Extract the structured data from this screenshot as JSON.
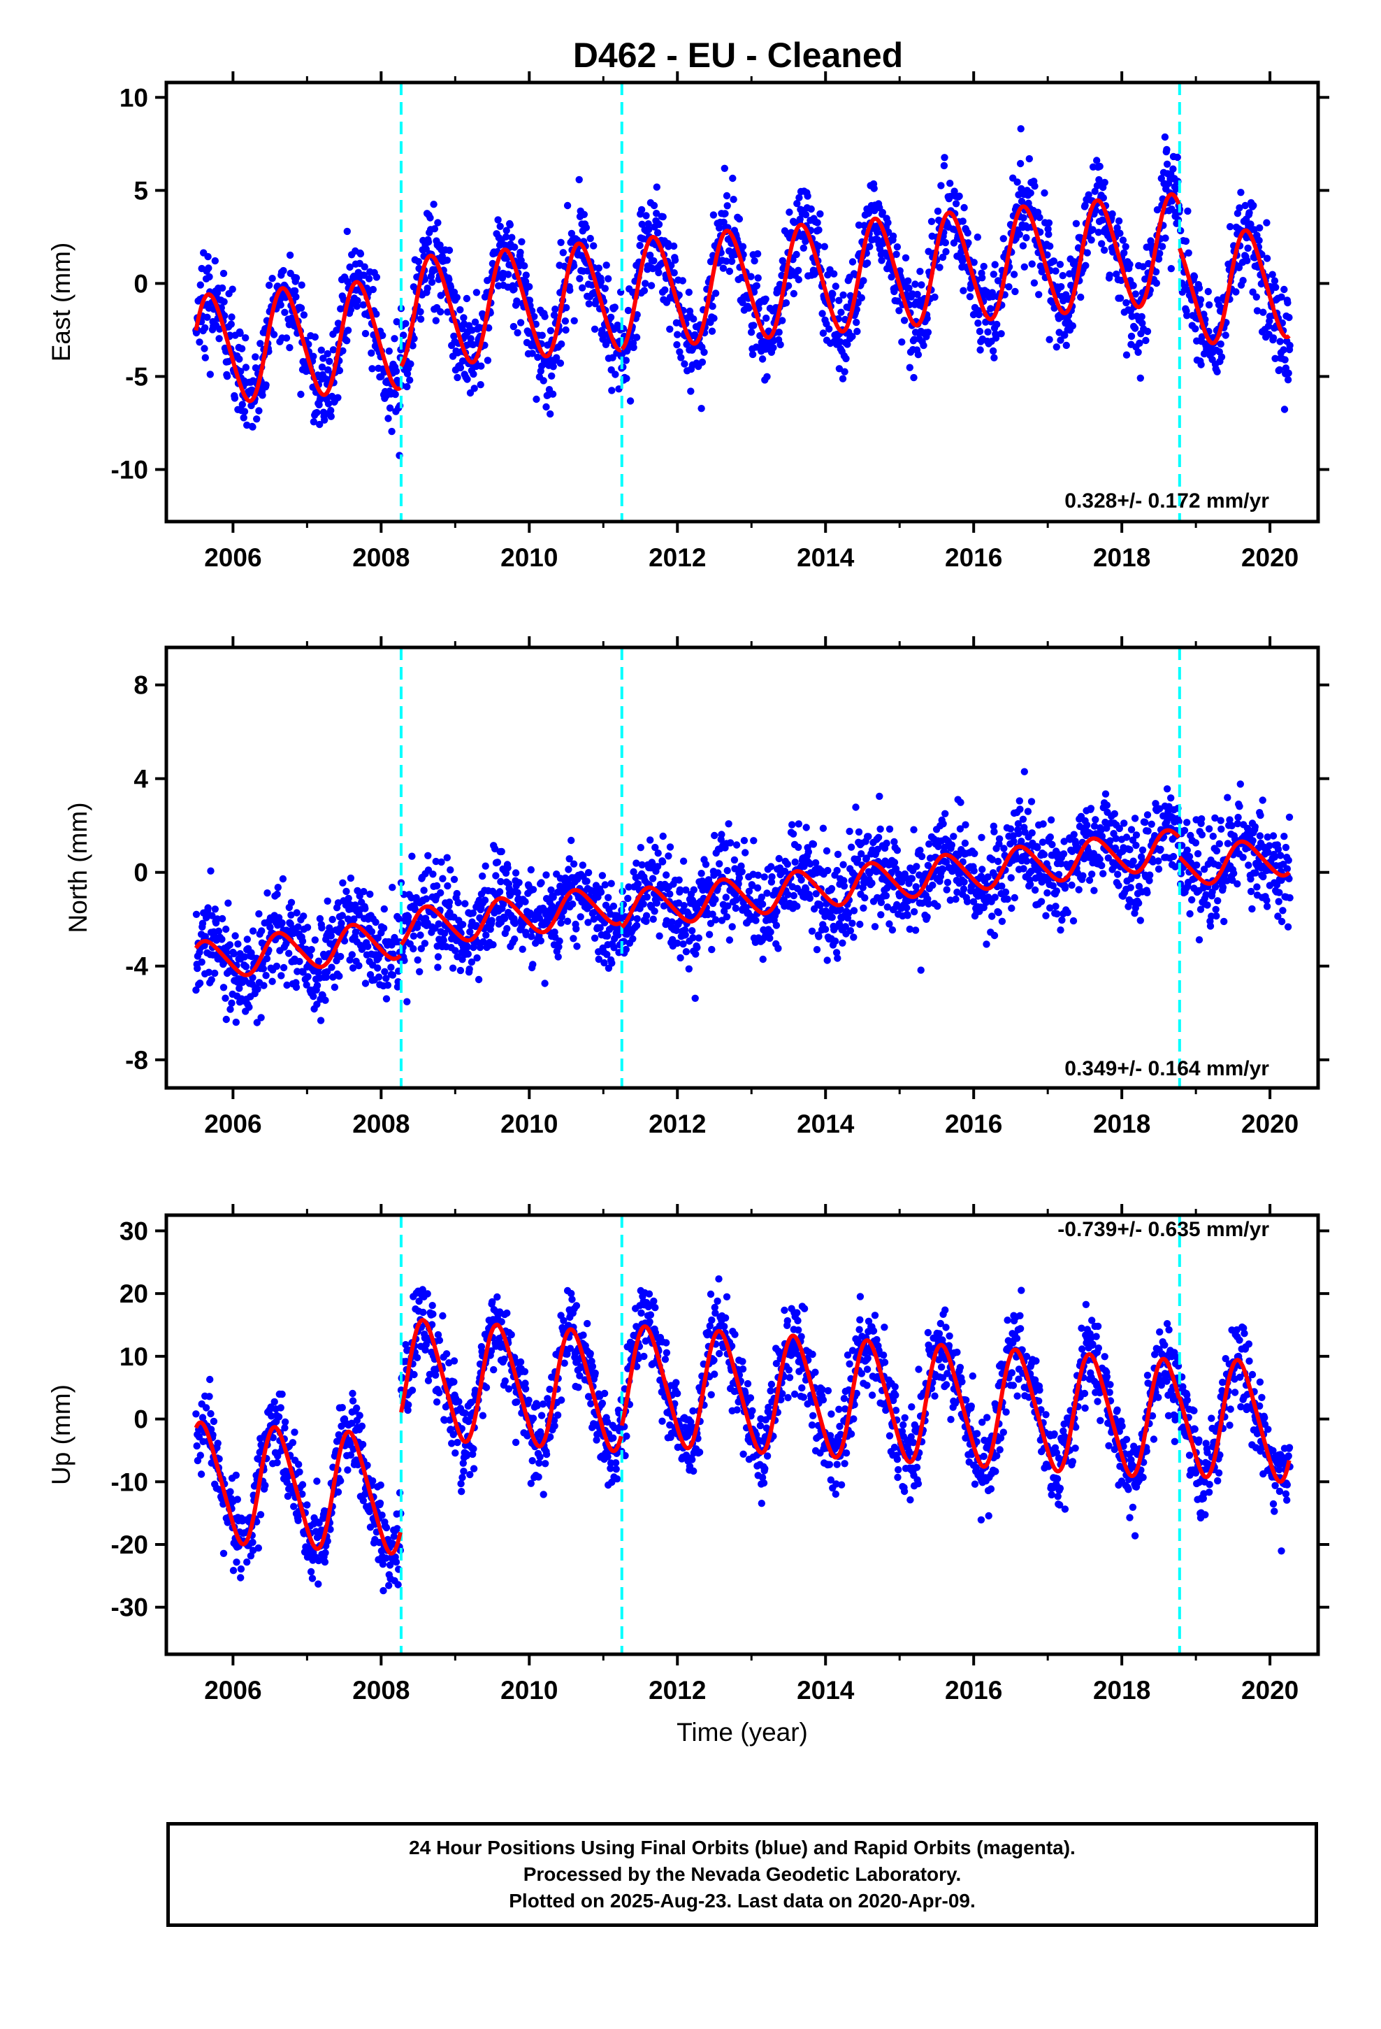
{
  "title": "D462  - EU - Cleaned",
  "x_axis_label": "Time (year)",
  "caption": [
    "24 Hour Positions Using Final Orbits (blue) and Rapid Orbits (magenta).",
    "Processed by the Nevada Geodetic Laboratory.",
    "Plotted on 2025-Aug-23. Last data on 2020-Apr-09."
  ],
  "colors": {
    "data": "#0000ff",
    "model": "#ff0000",
    "offset_line": "#00ffff",
    "frame": "#000000"
  },
  "chart_data": [
    {
      "type": "scatter",
      "ylabel": "East (mm)",
      "rate_label": "0.328+/- 0.172 mm/yr",
      "xlim": [
        2005.1,
        2020.65
      ],
      "ylim": [
        -12.8,
        10.8
      ],
      "yticks": [
        -10,
        -5,
        0,
        5,
        10
      ],
      "xticks": [
        2006,
        2008,
        2010,
        2012,
        2014,
        2016,
        2018,
        2020
      ],
      "offsets": [
        2008.27,
        2011.25,
        2018.78
      ],
      "data_range": [
        2005.5,
        2020.27
      ],
      "model": {
        "segment_starts": [
          -3.6,
          -1.6,
          -0.6,
          -0.4
        ],
        "rate": 0.328,
        "annual_amp": 2.9,
        "semiannual_amp": 0.3,
        "phase_year": 0.45,
        "scatter_sigma": 1.3
      }
    },
    {
      "type": "scatter",
      "ylabel": "North (mm)",
      "rate_label": "0.349+/- 0.164 mm/yr",
      "xlim": [
        2005.1,
        2020.65
      ],
      "ylim": [
        -9.2,
        9.6
      ],
      "yticks": [
        -8,
        -4,
        0,
        4,
        8
      ],
      "xticks": [
        2006,
        2008,
        2010,
        2012,
        2014,
        2016,
        2018,
        2020
      ],
      "offsets": [
        2008.27,
        2011.25,
        2018.78
      ],
      "data_range": [
        2005.5,
        2020.27
      ],
      "model": {
        "segment_starts": [
          -3.8,
          -2.4,
          -1.6,
          0.2
        ],
        "rate": 0.349,
        "annual_amp": 0.8,
        "semiannual_amp": 0.1,
        "phase_year": 0.4,
        "scatter_sigma": 1.0
      }
    },
    {
      "type": "scatter",
      "ylabel": "Up (mm)",
      "rate_label": "-0.739+/- 0.635 mm/yr",
      "xlim": [
        2005.1,
        2020.65
      ],
      "ylim": [
        -37.5,
        32.5
      ],
      "yticks": [
        -30,
        -20,
        -10,
        0,
        10,
        20,
        30
      ],
      "xticks": [
        2006,
        2008,
        2010,
        2012,
        2014,
        2016,
        2018,
        2020
      ],
      "offsets": [
        2008.27,
        2011.25,
        2018.78
      ],
      "data_range": [
        2005.5,
        2020.27
      ],
      "model": {
        "segment_starts": [
          -10.0,
          6.5,
          5.5,
          0.5
        ],
        "rate": -0.739,
        "annual_amp": 9.2,
        "semiannual_amp": 1.2,
        "phase_year": 0.35,
        "scatter_sigma": 3.5
      }
    }
  ]
}
